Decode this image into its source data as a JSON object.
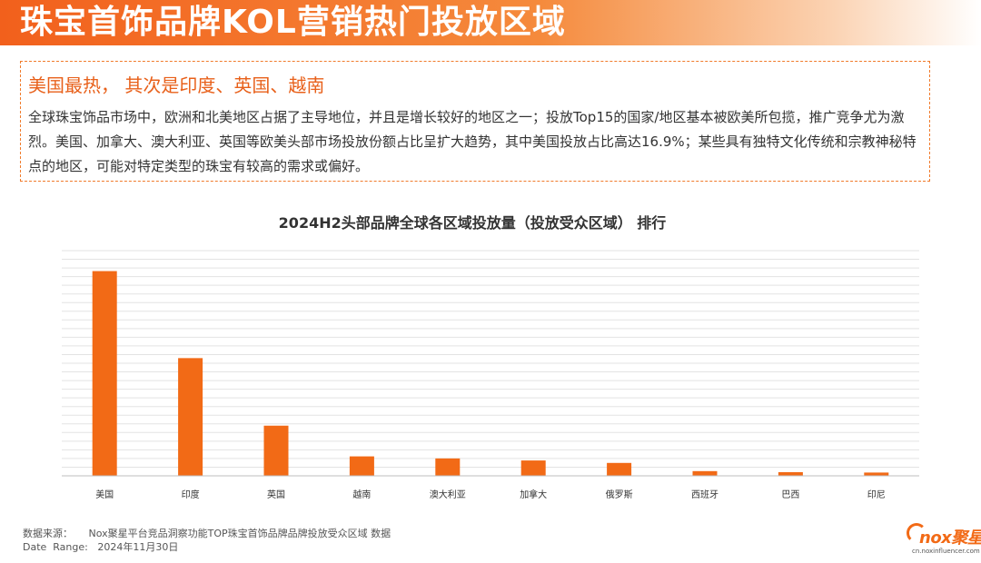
{
  "page": {
    "title": "珠宝首饰品牌KOL营销热门投放区域"
  },
  "summary": {
    "heading": "美国最热， 其次是印度、英国、越南",
    "body": "全球珠宝饰品市场中，欧洲和北美地区占据了主导地位，并且是增长较好的地区之一；投放Top15的国家/地区基本被欧美所包揽，推广竞争尤为激烈。美国、加拿大、澳大利亚、英国等欧美头部市场投放份额占比呈扩大趋势，其中美国投放占比高达16.9%；某些具有独特文化传统和宗教神秘特点的地区，可能对特定类型的珠宝有较高的需求或偏好。"
  },
  "chart_data": {
    "type": "bar",
    "title": "2024H2头部品牌全球各区域投放量（投放受众区域） 排行",
    "categories": [
      "美国",
      "印度",
      "英国",
      "越南",
      "澳大利亚",
      "加拿大",
      "俄罗斯",
      "西班牙",
      "巴西",
      "印尼"
    ],
    "values": [
      100,
      57.5,
      24.5,
      9.5,
      8.5,
      7.5,
      6.3,
      2.3,
      1.8,
      1.6
    ],
    "ylim": [
      0,
      110
    ],
    "grid": true,
    "colors": {
      "bar": "#f26a16"
    }
  },
  "footer": {
    "source_label": "数据来源：",
    "source_value": "Nox聚星平台竞品洞察功能TOP珠宝首饰品牌品牌投放受众区域 数据",
    "date_label": "Date  Range:",
    "date_value": "2024年11月30日"
  },
  "logo": {
    "text": "nox聚星",
    "url": "cn.noxinfluencer.com"
  }
}
